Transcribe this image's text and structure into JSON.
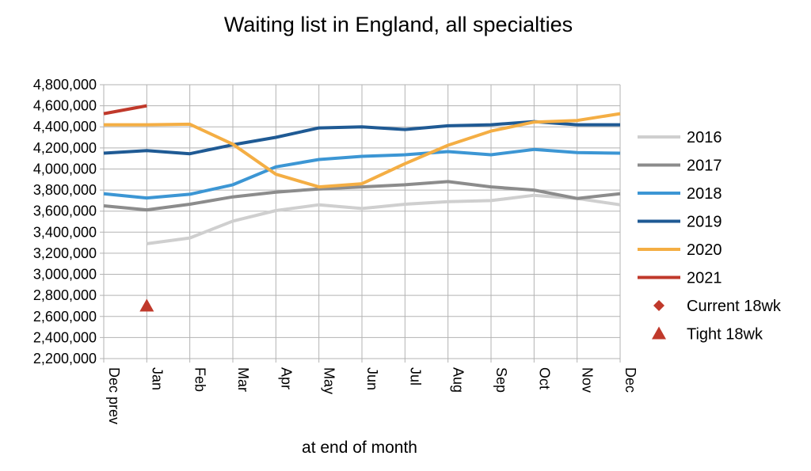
{
  "chart_data": {
    "type": "line",
    "title": "Waiting list in England, all specialties",
    "xlabel": "at end of month",
    "ylabel": "",
    "categories": [
      "Dec prev",
      "Jan",
      "Feb",
      "Mar",
      "Apr",
      "May",
      "Jun",
      "Jul",
      "Aug",
      "Sep",
      "Oct",
      "Nov",
      "Dec"
    ],
    "ylim": [
      2200000,
      4800000
    ],
    "yticks": [
      "2,200,000",
      "2,400,000",
      "2,600,000",
      "2,800,000",
      "3,000,000",
      "3,200,000",
      "3,400,000",
      "3,600,000",
      "3,800,000",
      "4,000,000",
      "4,200,000",
      "4,400,000",
      "4,600,000",
      "4,800,000"
    ],
    "ytick_values": [
      2200000,
      2400000,
      2600000,
      2800000,
      3000000,
      3200000,
      3400000,
      3600000,
      3800000,
      4000000,
      4200000,
      4400000,
      4600000,
      4800000
    ],
    "grid": true,
    "legend_position": "right",
    "series": [
      {
        "name": "2016",
        "kind": "line",
        "color": "#cfcfcf",
        "values": [
          null,
          3290000,
          3345000,
          3505000,
          3605000,
          3660000,
          3625000,
          3665000,
          3690000,
          3700000,
          3750000,
          3720000,
          3660000
        ]
      },
      {
        "name": "2017",
        "kind": "line",
        "color": "#8c8c8c",
        "values": [
          3650000,
          3612000,
          3665000,
          3735000,
          3780000,
          3810000,
          3830000,
          3850000,
          3880000,
          3830000,
          3800000,
          3720000,
          3765000
        ]
      },
      {
        "name": "2018",
        "kind": "line",
        "color": "#3c96d4",
        "values": [
          3765000,
          3725000,
          3760000,
          3850000,
          4020000,
          4090000,
          4120000,
          4135000,
          4165000,
          4135000,
          4185000,
          4155000,
          4150000
        ]
      },
      {
        "name": "2019",
        "kind": "line",
        "color": "#1f5a94",
        "values": [
          4150000,
          4175000,
          4145000,
          4230000,
          4300000,
          4390000,
          4400000,
          4375000,
          4410000,
          4420000,
          4450000,
          4420000,
          4420000
        ]
      },
      {
        "name": "2020",
        "kind": "line",
        "color": "#f4ae44",
        "values": [
          4420000,
          4420000,
          4425000,
          4235000,
          3950000,
          3830000,
          3860000,
          4050000,
          4225000,
          4360000,
          4445000,
          4460000,
          4525000
        ]
      },
      {
        "name": "2021",
        "kind": "line",
        "color": "#c0392b",
        "values": [
          4525000,
          4600000,
          null,
          null,
          null,
          null,
          null,
          null,
          null,
          null,
          null,
          null,
          null
        ]
      },
      {
        "name": "Current 18wk",
        "kind": "diamond",
        "color": "#c0392b",
        "values": [
          null,
          null,
          null,
          null,
          null,
          null,
          null,
          null,
          null,
          null,
          null,
          null,
          null
        ]
      },
      {
        "name": "Tight 18wk",
        "kind": "triangle",
        "color": "#c0392b",
        "values": [
          null,
          2700000,
          null,
          null,
          null,
          null,
          null,
          null,
          null,
          null,
          null,
          null,
          null
        ]
      }
    ]
  }
}
